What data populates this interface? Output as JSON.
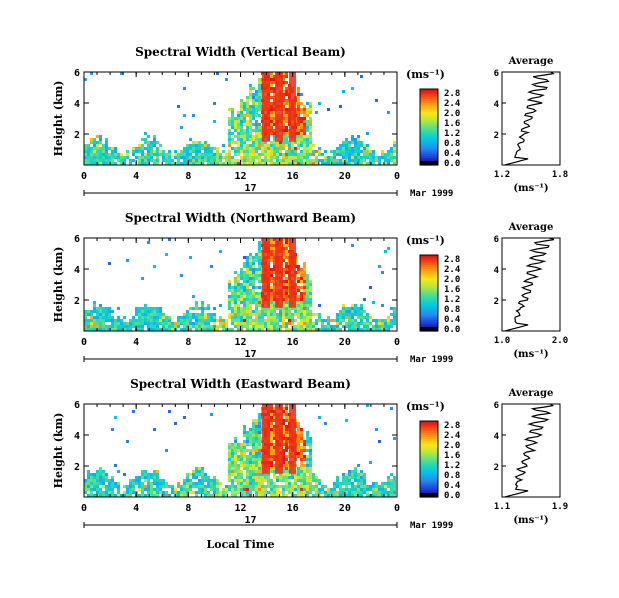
{
  "figure": {
    "xlabel_bottom": "Local Time",
    "colorbar_unit": "(ms⁻¹)",
    "avg_title": "Average",
    "avg_xlabel": "(ms⁻¹)",
    "date_label": "Mar 1999",
    "day_label": "17",
    "ylabel": "Height (km)"
  },
  "chart_data": [
    {
      "type": "heatmap",
      "title": "Spectral Width (Vertical Beam)",
      "ylabel": "Height (km)",
      "xlim": [
        0,
        24
      ],
      "ylim": [
        0,
        6
      ],
      "x_ticks": [
        "0",
        "4",
        "8",
        "12",
        "16",
        "20",
        "0"
      ],
      "y_ticks": [
        "2",
        "4",
        "6"
      ],
      "colorbar": {
        "unit": "(ms⁻¹)",
        "ticks": [
          "0.0",
          "0.4",
          "0.8",
          "1.2",
          "1.6",
          "2.0",
          "2.4",
          "2.8"
        ]
      },
      "average": {
        "title": "Average",
        "xlabel": "(ms⁻¹)",
        "x_ticks": [
          "1.2",
          "1.8"
        ],
        "xlim": [
          1.2,
          1.8
        ],
        "y_ticks": [
          "2",
          "4",
          "6"
        ]
      }
    },
    {
      "type": "heatmap",
      "title": "Spectral Width (Northward Beam)",
      "ylabel": "Height (km)",
      "xlim": [
        0,
        24
      ],
      "ylim": [
        0,
        6
      ],
      "x_ticks": [
        "0",
        "4",
        "8",
        "12",
        "16",
        "20",
        "0"
      ],
      "y_ticks": [
        "2",
        "4",
        "6"
      ],
      "colorbar": {
        "unit": "(ms⁻¹)",
        "ticks": [
          "0.0",
          "0.4",
          "0.8",
          "1.2",
          "1.6",
          "2.0",
          "2.4",
          "2.8"
        ]
      },
      "average": {
        "title": "Average",
        "xlabel": "(ms⁻¹)",
        "x_ticks": [
          "1.0",
          "2.0"
        ],
        "xlim": [
          1.0,
          2.0
        ],
        "y_ticks": [
          "2",
          "4",
          "6"
        ]
      }
    },
    {
      "type": "heatmap",
      "title": "Spectral Width (Eastward Beam)",
      "ylabel": "Height (km)",
      "xlim": [
        0,
        24
      ],
      "ylim": [
        0,
        6
      ],
      "x_ticks": [
        "0",
        "4",
        "8",
        "12",
        "16",
        "20",
        "0"
      ],
      "y_ticks": [
        "2",
        "4",
        "6"
      ],
      "colorbar": {
        "unit": "(ms⁻¹)",
        "ticks": [
          "0.0",
          "0.4",
          "0.8",
          "1.2",
          "1.6",
          "2.0",
          "2.4",
          "2.8"
        ]
      },
      "average": {
        "title": "Average",
        "xlabel": "(ms⁻¹)",
        "x_ticks": [
          "1.1",
          "1.9"
        ],
        "xlim": [
          1.1,
          1.9
        ],
        "y_ticks": [
          "2",
          "4",
          "6"
        ]
      }
    }
  ]
}
